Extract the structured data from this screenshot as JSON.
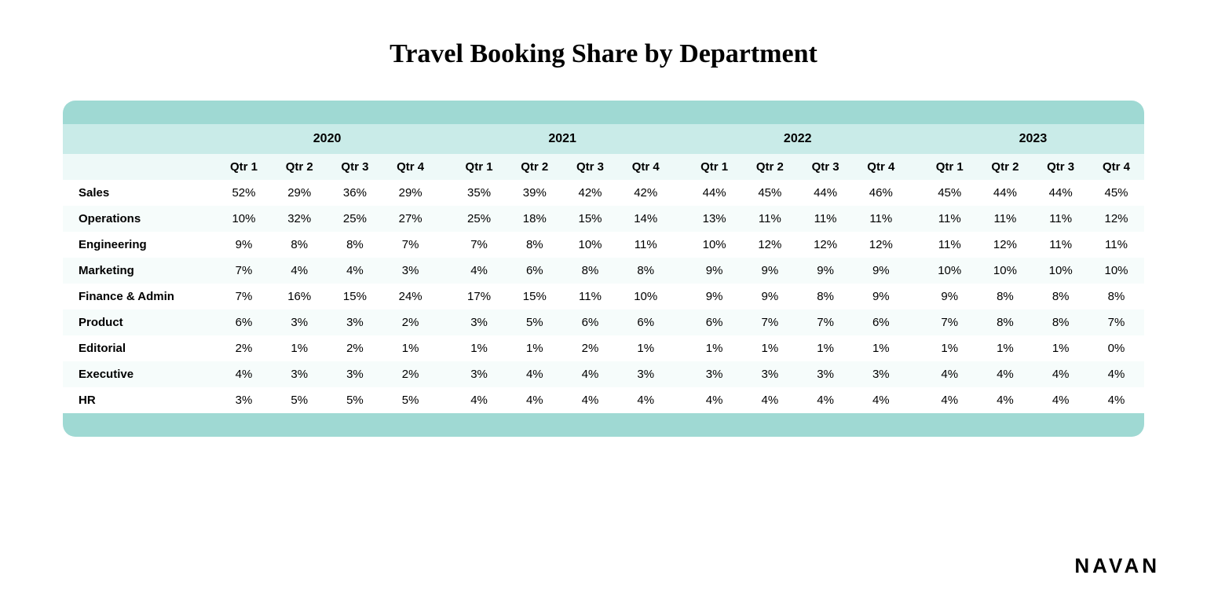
{
  "title": "Travel Booking Share by Department",
  "title_fontsize": 34,
  "brand": "NAVAN",
  "brand_fontsize": 26,
  "colors": {
    "band": "#9fd9d3",
    "header_year": "#c9ebe8",
    "header_qtr": "#eef9f8",
    "row_even": "#ffffff",
    "row_odd": "#f6fcfb",
    "text": "#000000",
    "background": "#ffffff"
  },
  "years": [
    "2020",
    "2021",
    "2022",
    "2023"
  ],
  "quarters": [
    "Qtr 1",
    "Qtr 2",
    "Qtr 3",
    "Qtr 4"
  ],
  "departments": [
    "Sales",
    "Operations",
    "Engineering",
    "Marketing",
    "Finance & Admin",
    "Product",
    "Editorial",
    "Executive",
    "HR"
  ],
  "rows": [
    [
      "52%",
      "29%",
      "36%",
      "29%",
      "35%",
      "39%",
      "42%",
      "42%",
      "44%",
      "45%",
      "44%",
      "46%",
      "45%",
      "44%",
      "44%",
      "45%"
    ],
    [
      "10%",
      "32%",
      "25%",
      "27%",
      "25%",
      "18%",
      "15%",
      "14%",
      "13%",
      "11%",
      "11%",
      "11%",
      "11%",
      "11%",
      "11%",
      "12%"
    ],
    [
      "9%",
      "8%",
      "8%",
      "7%",
      "7%",
      "8%",
      "10%",
      "11%",
      "10%",
      "12%",
      "12%",
      "12%",
      "11%",
      "12%",
      "11%",
      "11%"
    ],
    [
      "7%",
      "4%",
      "4%",
      "3%",
      "4%",
      "6%",
      "8%",
      "8%",
      "9%",
      "9%",
      "9%",
      "9%",
      "10%",
      "10%",
      "10%",
      "10%"
    ],
    [
      "7%",
      "16%",
      "15%",
      "24%",
      "17%",
      "15%",
      "11%",
      "10%",
      "9%",
      "9%",
      "8%",
      "9%",
      "9%",
      "8%",
      "8%",
      "8%"
    ],
    [
      "6%",
      "3%",
      "3%",
      "2%",
      "3%",
      "5%",
      "6%",
      "6%",
      "6%",
      "7%",
      "7%",
      "6%",
      "7%",
      "8%",
      "8%",
      "7%"
    ],
    [
      "2%",
      "1%",
      "2%",
      "1%",
      "1%",
      "1%",
      "2%",
      "1%",
      "1%",
      "1%",
      "1%",
      "1%",
      "1%",
      "1%",
      "1%",
      "0%"
    ],
    [
      "4%",
      "3%",
      "3%",
      "2%",
      "3%",
      "4%",
      "4%",
      "3%",
      "3%",
      "3%",
      "3%",
      "3%",
      "4%",
      "4%",
      "4%",
      "4%"
    ],
    [
      "3%",
      "5%",
      "5%",
      "5%",
      "4%",
      "4%",
      "4%",
      "4%",
      "4%",
      "4%",
      "4%",
      "4%",
      "4%",
      "4%",
      "4%",
      "4%"
    ]
  ]
}
